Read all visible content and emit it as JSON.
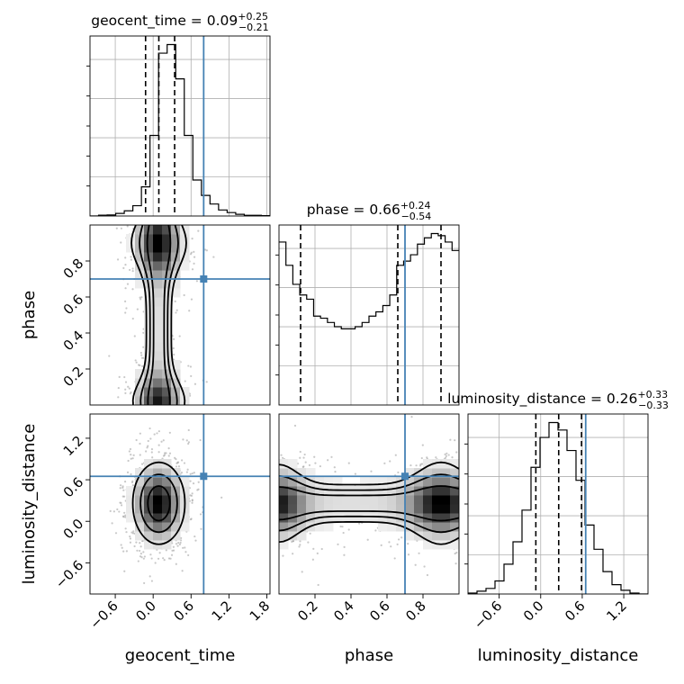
{
  "chart_data": {
    "type": "corner",
    "params": [
      "geocent_time",
      "phase",
      "luminosity_distance"
    ],
    "truths": [
      0.8,
      0.7,
      0.65
    ],
    "truth_color": "#4682b4",
    "grid": true,
    "ranges": {
      "geocent_time": [
        -1.0,
        1.85
      ],
      "phase": [
        0.0,
        1.0
      ],
      "luminosity_distance": [
        -1.05,
        1.55
      ]
    },
    "ticks": {
      "geocent_time": {
        "values": [
          -0.6,
          0.0,
          0.6,
          1.2,
          1.8
        ],
        "labels": [
          "−0.6",
          "0.0",
          "0.6",
          "1.2",
          "1.8"
        ]
      },
      "phase": {
        "values": [
          0.2,
          0.4,
          0.6,
          0.8
        ],
        "labels": [
          "0.2",
          "0.4",
          "0.6",
          "0.8"
        ]
      },
      "luminosity_distance": {
        "values": [
          -0.6,
          0.0,
          0.6,
          1.2
        ],
        "labels": [
          "−0.6",
          "0.0",
          "0.6",
          "1.2"
        ]
      }
    },
    "titles": [
      {
        "param": "geocent_time",
        "name": "geocent_time",
        "median": "0.09",
        "plus": "+0.25",
        "minus": "−0.21"
      },
      {
        "param": "phase",
        "name": "phase",
        "median": "0.66",
        "plus": "+0.24",
        "minus": "−0.54"
      },
      {
        "param": "luminosity_distance",
        "name": "luminosity_distance",
        "median": "0.26",
        "plus": "+0.33",
        "minus": "−0.33"
      }
    ],
    "quantiles": {
      "geocent_time": [
        -0.12,
        0.09,
        0.34
      ],
      "phase": [
        0.12,
        0.66,
        0.9
      ],
      "luminosity_distance": [
        -0.07,
        0.26,
        0.59
      ]
    },
    "histograms": {
      "geocent_time": {
        "range": [
          -1.0,
          1.85
        ],
        "counts": [
          0,
          0.5,
          0.6,
          1.5,
          3,
          6,
          17,
          47,
          95,
          100,
          80,
          47,
          21,
          12,
          7,
          3.5,
          2,
          1,
          0.4,
          0.4,
          0.2
        ]
      },
      "phase": {
        "range": [
          0.0,
          1.0
        ],
        "counts": [
          77,
          66,
          57,
          52,
          50,
          42,
          41,
          39,
          37,
          36,
          36,
          37,
          39,
          42,
          44,
          47,
          52,
          66,
          68,
          71,
          76,
          79,
          81,
          80,
          77,
          73
        ]
      },
      "luminosity_distance": {
        "range": [
          -1.05,
          1.55
        ],
        "counts": [
          0.5,
          1.5,
          3,
          7,
          16,
          28,
          45,
          68,
          84,
          92,
          88,
          77,
          61,
          37,
          24,
          12,
          5,
          2,
          0.5,
          0
        ]
      }
    },
    "density_2d": [
      {
        "x": "geocent_time",
        "y": "phase",
        "x_mean": 0.09,
        "x_sd": 0.22,
        "y_pattern": "bimodal_edges"
      },
      {
        "x": "geocent_time",
        "y": "luminosity_distance",
        "x_mean": 0.09,
        "x_sd": 0.23,
        "y_mean": 0.26,
        "y_sd": 0.33
      },
      {
        "x": "phase",
        "y": "luminosity_distance",
        "x_pattern": "bimodal_edges",
        "y_mean": 0.26,
        "y_sd": 0.3
      }
    ]
  }
}
